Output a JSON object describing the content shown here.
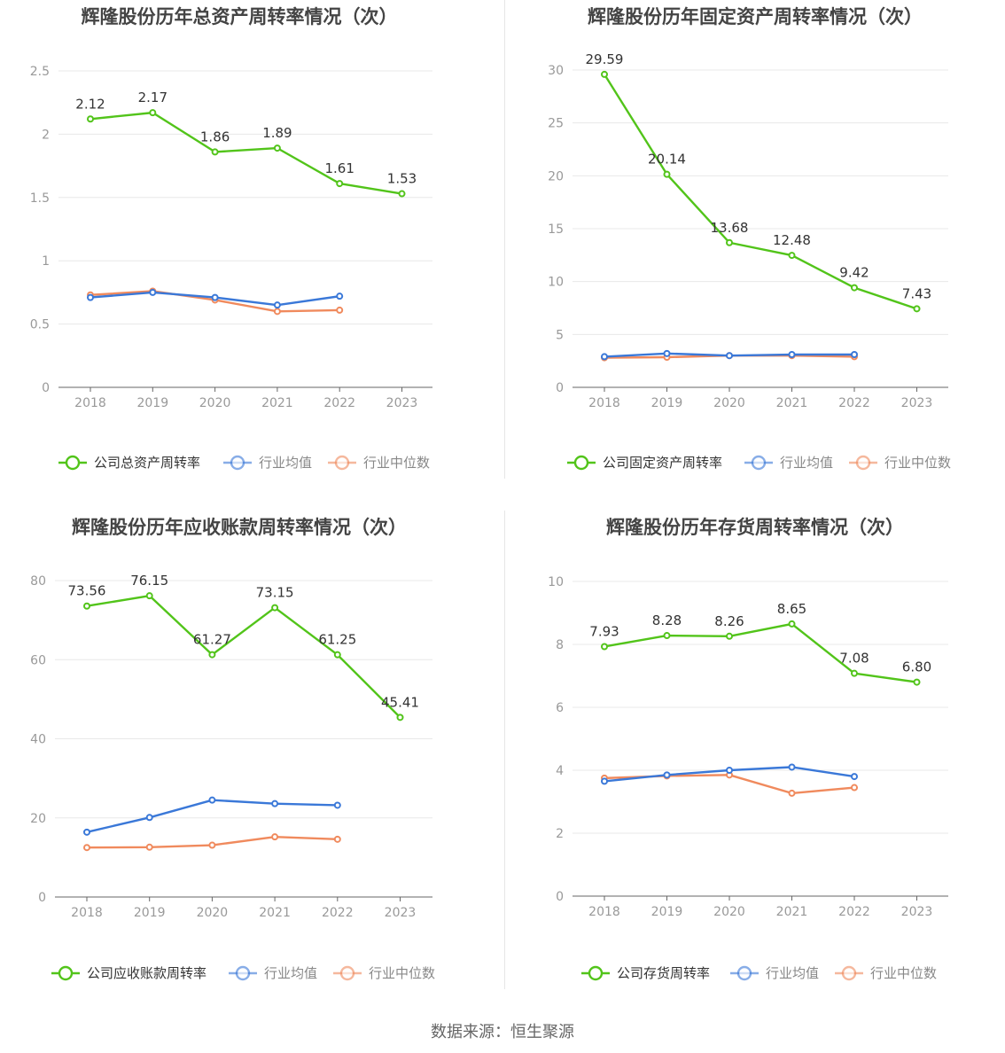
{
  "source": "数据来源：恒生聚源",
  "colors": {
    "company": "#52c41a",
    "avg": "#3a78d8",
    "median": "#f08a5d",
    "axis": "#999999",
    "grid": "#e8e8e8",
    "title": "#444444"
  },
  "chart_data": [
    {
      "type": "line",
      "title": "辉隆股份历年总资产周转率情况（次）",
      "categories": [
        "2018",
        "2019",
        "2020",
        "2021",
        "2022",
        "2023"
      ],
      "ylim": [
        0,
        2.5
      ],
      "yticks": [
        0,
        0.5,
        1,
        1.5,
        2,
        2.5
      ],
      "ytick_labels": [
        "0",
        "0.5",
        "1",
        "1.5",
        "2",
        "2.5"
      ],
      "legend_position": "bottom",
      "series": [
        {
          "name": "公司总资产周转率",
          "values": [
            2.12,
            2.17,
            1.86,
            1.89,
            1.61,
            1.53
          ],
          "labels": [
            "2.12",
            "2.17",
            "1.86",
            "1.89",
            "1.61",
            "1.53"
          ]
        },
        {
          "name": "行业均值",
          "values": [
            0.71,
            0.75,
            0.71,
            0.65,
            0.72,
            null
          ]
        },
        {
          "name": "行业中位数",
          "values": [
            0.73,
            0.76,
            0.69,
            0.6,
            0.61,
            null
          ]
        }
      ]
    },
    {
      "type": "line",
      "title": "辉隆股份历年固定资产周转率情况（次）",
      "categories": [
        "2018",
        "2019",
        "2020",
        "2021",
        "2022",
        "2023"
      ],
      "ylim": [
        0,
        30
      ],
      "yticks": [
        0,
        5,
        10,
        15,
        20,
        25,
        30
      ],
      "ytick_labels": [
        "0",
        "5",
        "10",
        "15",
        "20",
        "25",
        "30"
      ],
      "legend_position": "bottom",
      "series": [
        {
          "name": "公司固定资产周转率",
          "values": [
            29.59,
            20.14,
            13.68,
            12.48,
            9.42,
            7.43
          ],
          "labels": [
            "29.59",
            "20.14",
            "13.68",
            "12.48",
            "9.42",
            "7.43"
          ]
        },
        {
          "name": "行业均值",
          "values": [
            2.9,
            3.2,
            3.0,
            3.1,
            3.1,
            null
          ]
        },
        {
          "name": "行业中位数",
          "values": [
            2.8,
            2.85,
            3.0,
            3.0,
            2.9,
            null
          ]
        }
      ]
    },
    {
      "type": "line",
      "title": "辉隆股份历年应收账款周转率情况（次）",
      "categories": [
        "2018",
        "2019",
        "2020",
        "2021",
        "2022",
        "2023"
      ],
      "ylim": [
        0,
        80
      ],
      "yticks": [
        0,
        20,
        40,
        60,
        80
      ],
      "ytick_labels": [
        "0",
        "20",
        "40",
        "60",
        "80"
      ],
      "legend_position": "bottom",
      "series": [
        {
          "name": "公司应收账款周转率",
          "values": [
            73.56,
            76.15,
            61.27,
            73.15,
            61.25,
            45.41
          ],
          "labels": [
            "73.56",
            "76.15",
            "61.27",
            "73.15",
            "61.25",
            "45.41"
          ]
        },
        {
          "name": "行业均值",
          "values": [
            16.4,
            20.1,
            24.5,
            23.6,
            23.2,
            null
          ]
        },
        {
          "name": "行业中位数",
          "values": [
            12.5,
            12.6,
            13.1,
            15.2,
            14.6,
            null
          ]
        }
      ]
    },
    {
      "type": "line",
      "title": "辉隆股份历年存货周转率情况（次）",
      "categories": [
        "2018",
        "2019",
        "2020",
        "2021",
        "2022",
        "2023"
      ],
      "ylim": [
        0,
        10
      ],
      "yticks": [
        0,
        2,
        4,
        6,
        8,
        10
      ],
      "ytick_labels": [
        "0",
        "2",
        "4",
        "6",
        "8",
        "10"
      ],
      "legend_position": "bottom",
      "series": [
        {
          "name": "公司存货周转率",
          "values": [
            7.93,
            8.28,
            8.26,
            8.65,
            7.08,
            6.8
          ],
          "labels": [
            "7.93",
            "8.28",
            "8.26",
            "8.65",
            "7.08",
            "6.80"
          ]
        },
        {
          "name": "行业均值",
          "values": [
            3.65,
            3.85,
            4.0,
            4.1,
            3.8,
            null
          ]
        },
        {
          "name": "行业中位数",
          "values": [
            3.75,
            3.82,
            3.85,
            3.27,
            3.45,
            null
          ]
        }
      ]
    }
  ]
}
